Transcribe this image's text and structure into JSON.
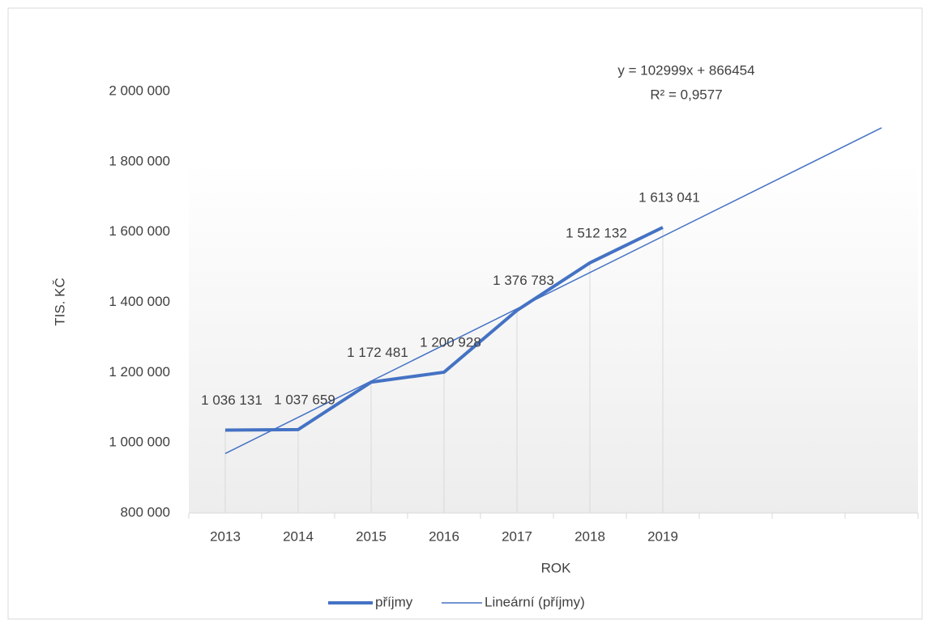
{
  "chart_data": {
    "type": "line",
    "x_label": "ROK",
    "y_label": "TIS. KČ",
    "categories": [
      "2013",
      "2014",
      "2015",
      "2016",
      "2017",
      "2018",
      "2019",
      null,
      null,
      null
    ],
    "series": [
      {
        "name": "příjmy",
        "color": "#4472c4",
        "values": [
          1036131,
          1037659,
          1172481,
          1200928,
          1376783,
          1512132,
          1613041,
          null,
          null,
          null
        ],
        "value_labels": [
          "1 036 131",
          "1 037 659",
          "1 172 481",
          "1 200 928",
          "1 376 783",
          "1 512 132",
          "1 613 041",
          null,
          null,
          null
        ]
      }
    ],
    "trendline": {
      "name": "Lineární (příjmy)",
      "color": "#4472c4",
      "equation": "y = 102999x + 866454",
      "r2": "R² = 0,9577",
      "slope": 102999,
      "intercept": 866454
    },
    "ylim": [
      800000,
      2000000
    ],
    "yticks": [
      {
        "value": 800000,
        "label": "800 000"
      },
      {
        "value": 1000000,
        "label": "1 000 000"
      },
      {
        "value": 1200000,
        "label": "1 200 000"
      },
      {
        "value": 1400000,
        "label": "1 400 000"
      },
      {
        "value": 1600000,
        "label": "1 600 000"
      },
      {
        "value": 1800000,
        "label": "1 800 000"
      },
      {
        "value": 2000000,
        "label": "2 000 000"
      }
    ],
    "legend": "bottom"
  }
}
